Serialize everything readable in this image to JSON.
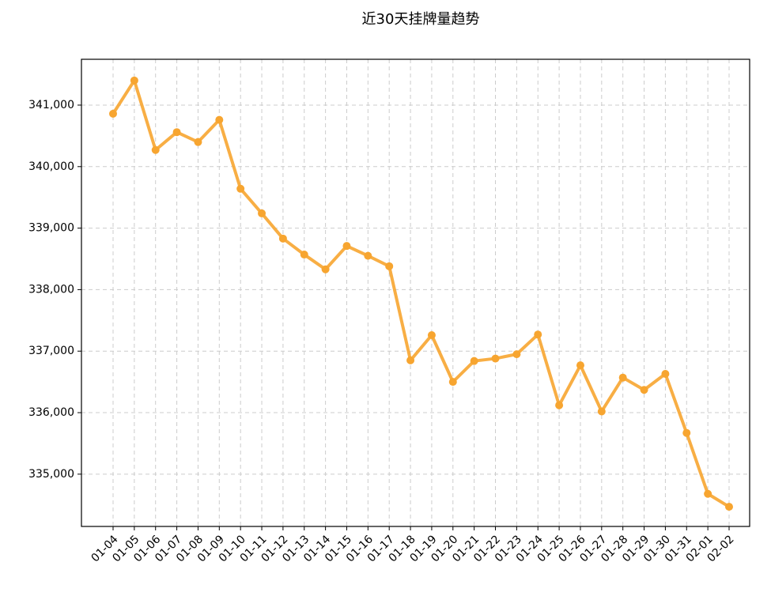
{
  "chart_data": {
    "type": "line",
    "title": "近30天挂牌量趋势",
    "categories": [
      "01-04",
      "01-05",
      "01-06",
      "01-07",
      "01-08",
      "01-09",
      "01-10",
      "01-11",
      "01-12",
      "01-13",
      "01-14",
      "01-15",
      "01-16",
      "01-17",
      "01-18",
      "01-19",
      "01-20",
      "01-21",
      "01-22",
      "01-23",
      "01-24",
      "01-25",
      "01-26",
      "01-27",
      "01-28",
      "01-29",
      "01-30",
      "01-31",
      "02-01",
      "02-02"
    ],
    "values": [
      340860,
      341400,
      340270,
      340560,
      340400,
      340760,
      339640,
      339240,
      338830,
      338570,
      338330,
      338710,
      338550,
      338380,
      336850,
      337260,
      336500,
      336840,
      336880,
      336950,
      337270,
      336120,
      336770,
      336020,
      336570,
      336370,
      336630,
      335670,
      334680,
      334470
    ],
    "color": "#f7a530",
    "ylim": [
      334150,
      341745
    ],
    "yticks": [
      {
        "value": 335000,
        "label": "335,000"
      },
      {
        "value": 336000,
        "label": "336,000"
      },
      {
        "value": 337000,
        "label": "337,000"
      },
      {
        "value": 338000,
        "label": "338,000"
      },
      {
        "value": 339000,
        "label": "339,000"
      },
      {
        "value": 340000,
        "label": "340,000"
      },
      {
        "value": 341000,
        "label": "341,000"
      }
    ],
    "grid": true
  }
}
